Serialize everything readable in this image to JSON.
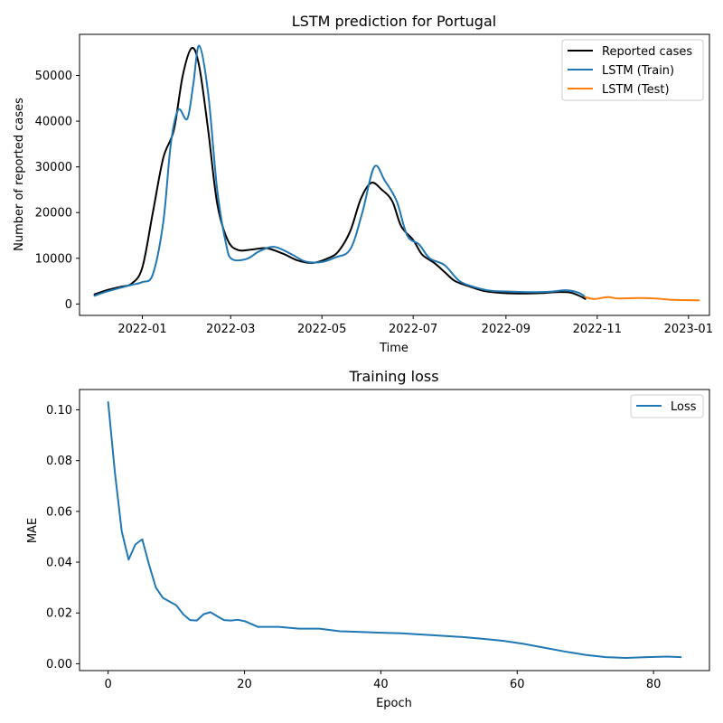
{
  "chart_data": [
    {
      "type": "line",
      "title": "LSTM prediction for Portugal",
      "xlabel": "Time",
      "ylabel": "Number of reported cases",
      "xlim": [
        "2021-11-20",
        "2023-01-15"
      ],
      "ylim": [
        -2500,
        59000
      ],
      "x_ticks": [
        "2022-01",
        "2022-03",
        "2022-05",
        "2022-07",
        "2022-09",
        "2022-11",
        "2023-01"
      ],
      "y_ticks": [
        0,
        10000,
        20000,
        30000,
        40000,
        50000
      ],
      "legend": "top-right",
      "series": [
        {
          "name": "Reported cases",
          "color": "#000000",
          "points": [
            [
              "2021-11-30",
              2100
            ],
            [
              "2021-12-08",
              3000
            ],
            [
              "2021-12-18",
              3800
            ],
            [
              "2021-12-25",
              4500
            ],
            [
              "2022-01-01",
              8000
            ],
            [
              "2022-01-08",
              20000
            ],
            [
              "2022-01-15",
              32000
            ],
            [
              "2022-01-22",
              38000
            ],
            [
              "2022-01-28",
              50000
            ],
            [
              "2022-02-03",
              56000
            ],
            [
              "2022-02-08",
              52000
            ],
            [
              "2022-02-14",
              38000
            ],
            [
              "2022-02-20",
              22000
            ],
            [
              "2022-02-27",
              14000
            ],
            [
              "2022-03-06",
              11800
            ],
            [
              "2022-03-15",
              11900
            ],
            [
              "2022-03-25",
              12200
            ],
            [
              "2022-04-05",
              11000
            ],
            [
              "2022-04-15",
              9500
            ],
            [
              "2022-04-25",
              9000
            ],
            [
              "2022-05-05",
              10000
            ],
            [
              "2022-05-12",
              11500
            ],
            [
              "2022-05-20",
              16000
            ],
            [
              "2022-05-27",
              23000
            ],
            [
              "2022-06-03",
              26500
            ],
            [
              "2022-06-10",
              25000
            ],
            [
              "2022-06-17",
              22500
            ],
            [
              "2022-06-23",
              17000
            ],
            [
              "2022-07-01",
              14000
            ],
            [
              "2022-07-07",
              10800
            ],
            [
              "2022-07-15",
              9000
            ],
            [
              "2022-07-22",
              7000
            ],
            [
              "2022-07-29",
              5000
            ],
            [
              "2022-08-08",
              3800
            ],
            [
              "2022-08-18",
              2800
            ],
            [
              "2022-08-30",
              2400
            ],
            [
              "2022-09-12",
              2300
            ],
            [
              "2022-09-25",
              2400
            ],
            [
              "2022-10-05",
              2600
            ],
            [
              "2022-10-14",
              2500
            ],
            [
              "2022-10-20",
              1800
            ],
            [
              "2022-10-24",
              1100
            ]
          ]
        },
        {
          "name": "LSTM (Train)",
          "color": "#1f77b4",
          "points": [
            [
              "2021-11-30",
              1800
            ],
            [
              "2021-12-08",
              2700
            ],
            [
              "2021-12-18",
              3600
            ],
            [
              "2021-12-25",
              4200
            ],
            [
              "2022-01-01",
              4800
            ],
            [
              "2022-01-08",
              6500
            ],
            [
              "2022-01-15",
              18000
            ],
            [
              "2022-01-20",
              35000
            ],
            [
              "2022-01-25",
              42500
            ],
            [
              "2022-01-31",
              40500
            ],
            [
              "2022-02-04",
              48000
            ],
            [
              "2022-02-08",
              56500
            ],
            [
              "2022-02-14",
              46000
            ],
            [
              "2022-02-20",
              25000
            ],
            [
              "2022-02-26",
              13000
            ],
            [
              "2022-03-02",
              9800
            ],
            [
              "2022-03-12",
              9900
            ],
            [
              "2022-03-20",
              11500
            ],
            [
              "2022-03-30",
              12500
            ],
            [
              "2022-04-10",
              11000
            ],
            [
              "2022-04-20",
              9300
            ],
            [
              "2022-05-01",
              9200
            ],
            [
              "2022-05-10",
              10200
            ],
            [
              "2022-05-20",
              12000
            ],
            [
              "2022-05-28",
              20000
            ],
            [
              "2022-06-05",
              30000
            ],
            [
              "2022-06-12",
              27000
            ],
            [
              "2022-06-20",
              22500
            ],
            [
              "2022-06-27",
              15000
            ],
            [
              "2022-07-05",
              13000
            ],
            [
              "2022-07-12",
              10000
            ],
            [
              "2022-07-22",
              8500
            ],
            [
              "2022-08-01",
              5000
            ],
            [
              "2022-08-12",
              3600
            ],
            [
              "2022-08-22",
              2900
            ],
            [
              "2022-09-05",
              2700
            ],
            [
              "2022-09-18",
              2600
            ],
            [
              "2022-10-01",
              2700
            ],
            [
              "2022-10-12",
              3000
            ],
            [
              "2022-10-20",
              2400
            ],
            [
              "2022-10-24",
              1500
            ]
          ]
        },
        {
          "name": "LSTM (Test)",
          "color": "#ff7f0e",
          "points": [
            [
              "2022-10-24",
              1500
            ],
            [
              "2022-10-30",
              1100
            ],
            [
              "2022-11-08",
              1500
            ],
            [
              "2022-11-15",
              1200
            ],
            [
              "2022-11-28",
              1300
            ],
            [
              "2022-12-10",
              1200
            ],
            [
              "2022-12-22",
              900
            ],
            [
              "2023-01-08",
              800
            ]
          ]
        }
      ]
    },
    {
      "type": "line",
      "title": "Training loss",
      "xlabel": "Epoch",
      "ylabel": "MAE",
      "xlim": [
        -4.2,
        88.2
      ],
      "ylim": [
        -0.0027,
        0.108
      ],
      "x_ticks": [
        0,
        20,
        40,
        60,
        80
      ],
      "y_ticks": [
        "0.00",
        "0.02",
        "0.04",
        "0.06",
        "0.08",
        "0.10"
      ],
      "legend": "top-right",
      "series": [
        {
          "name": "Loss",
          "color": "#1f77b4",
          "x": [
            0,
            1,
            2,
            3,
            4,
            5,
            6,
            7,
            8,
            9,
            10,
            11,
            12,
            13,
            14,
            15,
            16,
            17,
            18,
            19,
            20,
            22,
            25,
            28,
            31,
            34,
            37,
            40,
            43,
            46,
            49,
            52,
            55,
            58,
            61,
            64,
            67,
            70,
            73,
            76,
            79,
            82,
            84
          ],
          "y": [
            0.103,
            0.075,
            0.052,
            0.041,
            0.047,
            0.049,
            0.039,
            0.03,
            0.026,
            0.0245,
            0.023,
            0.0195,
            0.0172,
            0.017,
            0.0195,
            0.0203,
            0.0187,
            0.0172,
            0.017,
            0.0173,
            0.0168,
            0.0145,
            0.0145,
            0.0138,
            0.0138,
            0.0128,
            0.0125,
            0.0122,
            0.012,
            0.0115,
            0.011,
            0.0105,
            0.0098,
            0.009,
            0.0078,
            0.0063,
            0.0048,
            0.0035,
            0.0026,
            0.0023,
            0.0026,
            0.0028,
            0.0026
          ]
        }
      ]
    }
  ]
}
